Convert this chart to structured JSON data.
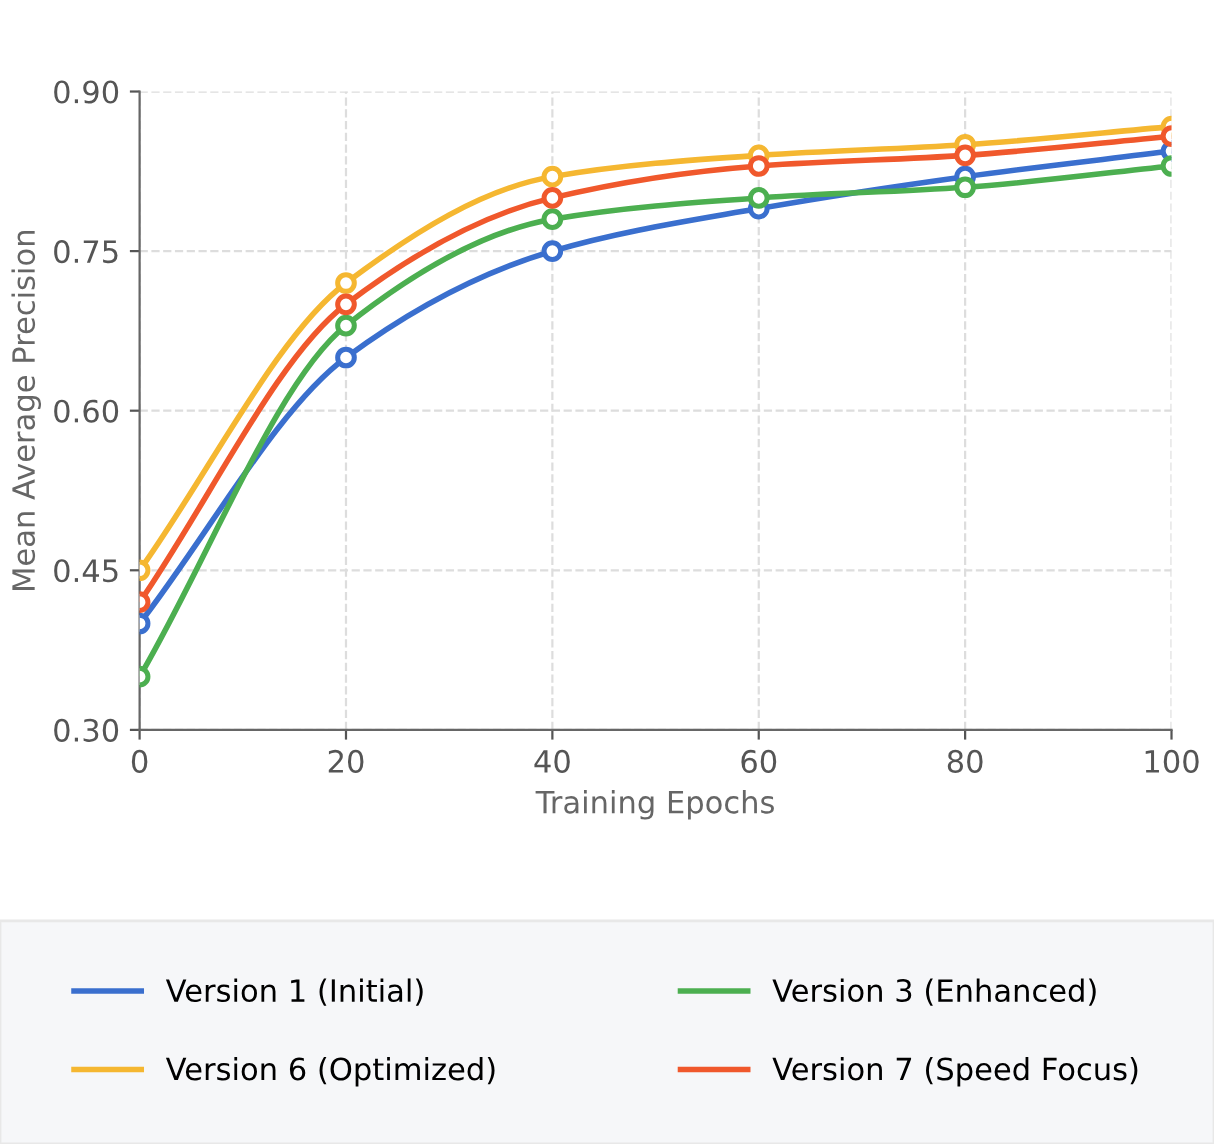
{
  "chart_data": {
    "type": "line",
    "xlabel": "Training Epochs",
    "ylabel": "Mean Average Precision",
    "x": [
      0,
      20,
      40,
      60,
      80,
      100
    ],
    "series": [
      {
        "name": "Version 1 (Initial)",
        "color": "#3a6fce",
        "values": [
          0.4,
          0.65,
          0.75,
          0.79,
          0.82,
          0.844
        ]
      },
      {
        "name": "Version 3 (Enhanced)",
        "color": "#4caf50",
        "values": [
          0.35,
          0.68,
          0.78,
          0.8,
          0.81,
          0.83
        ]
      },
      {
        "name": "Version 6 (Optimized)",
        "color": "#f5b731",
        "values": [
          0.45,
          0.72,
          0.82,
          0.84,
          0.85,
          0.867
        ]
      },
      {
        "name": "Version 7 (Speed Focus)",
        "color": "#f0582c",
        "values": [
          0.42,
          0.7,
          0.8,
          0.83,
          0.84,
          0.858
        ]
      }
    ],
    "xlim": [
      0,
      100
    ],
    "xticks": [
      0,
      20,
      40,
      60,
      80,
      100
    ],
    "ylim": [
      0.3,
      0.9
    ],
    "yticks": [
      {
        "value": 0.3,
        "label": "0.30"
      },
      {
        "value": 0.45,
        "label": "0.45"
      },
      {
        "value": 0.6,
        "label": "0.60"
      },
      {
        "value": 0.75,
        "label": "0.75"
      },
      {
        "value": 0.9,
        "label": "0.90"
      }
    ],
    "grid": true,
    "legend": "bottom",
    "marker": "circle",
    "line_style": "solid"
  }
}
